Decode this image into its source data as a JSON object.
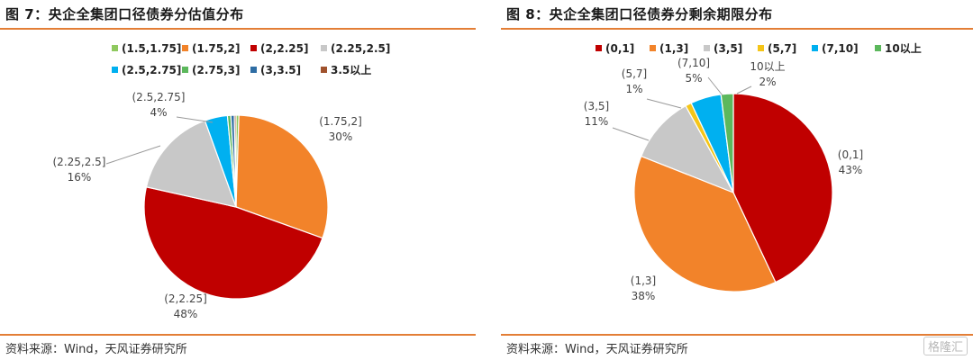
{
  "panels": [
    {
      "title": "图 7：央企全集团口径债券分估值分布",
      "source": "资料来源：Wind，天风证券研究所"
    },
    {
      "title": "图 8：央企全集团口径债券分剩余期限分布",
      "source": "资料来源：Wind，天风证券研究所"
    }
  ],
  "watermark": "格隆汇",
  "chart_data": [
    {
      "type": "pie",
      "legend_position": "top",
      "start_angle_deg": 0,
      "direction": "clockwise",
      "slices": [
        {
          "label": "(1.5,1.75]",
          "value": 0.5,
          "color": "#8fc95f",
          "data_label": ""
        },
        {
          "label": "(1.75,2]",
          "value": 30,
          "color": "#f2832a",
          "data_label": "30%"
        },
        {
          "label": "(2,2.25]",
          "value": 48,
          "color": "#c00000",
          "data_label": "48%"
        },
        {
          "label": "(2.25,2.5]",
          "value": 16,
          "color": "#c8c8c8",
          "data_label": "16%"
        },
        {
          "label": "(2.5,2.75]",
          "value": 4,
          "color": "#00b0f0",
          "data_label": "4%"
        },
        {
          "label": "(2.75,3]",
          "value": 0.6,
          "color": "#5cb85c",
          "data_label": ""
        },
        {
          "label": "(3,3.5]",
          "value": 0.6,
          "color": "#2e6da4",
          "data_label": ""
        },
        {
          "label": "3.5以上",
          "value": 0.3,
          "color": "#a0522d",
          "data_label": ""
        }
      ]
    },
    {
      "type": "pie",
      "legend_position": "top",
      "start_angle_deg": 0,
      "direction": "clockwise",
      "slices": [
        {
          "label": "(0,1]",
          "value": 43,
          "color": "#c00000",
          "data_label": "43%"
        },
        {
          "label": "(1,3]",
          "value": 38,
          "color": "#f2832a",
          "data_label": "38%"
        },
        {
          "label": "(3,5]",
          "value": 11,
          "color": "#c8c8c8",
          "data_label": "11%"
        },
        {
          "label": "(5,7]",
          "value": 1,
          "color": "#f5c518",
          "data_label": "1%"
        },
        {
          "label": "(7,10]",
          "value": 5,
          "color": "#00b0f0",
          "data_label": "5%"
        },
        {
          "label": "10以上",
          "value": 2,
          "color": "#5cb85c",
          "data_label": "2%"
        }
      ]
    }
  ]
}
